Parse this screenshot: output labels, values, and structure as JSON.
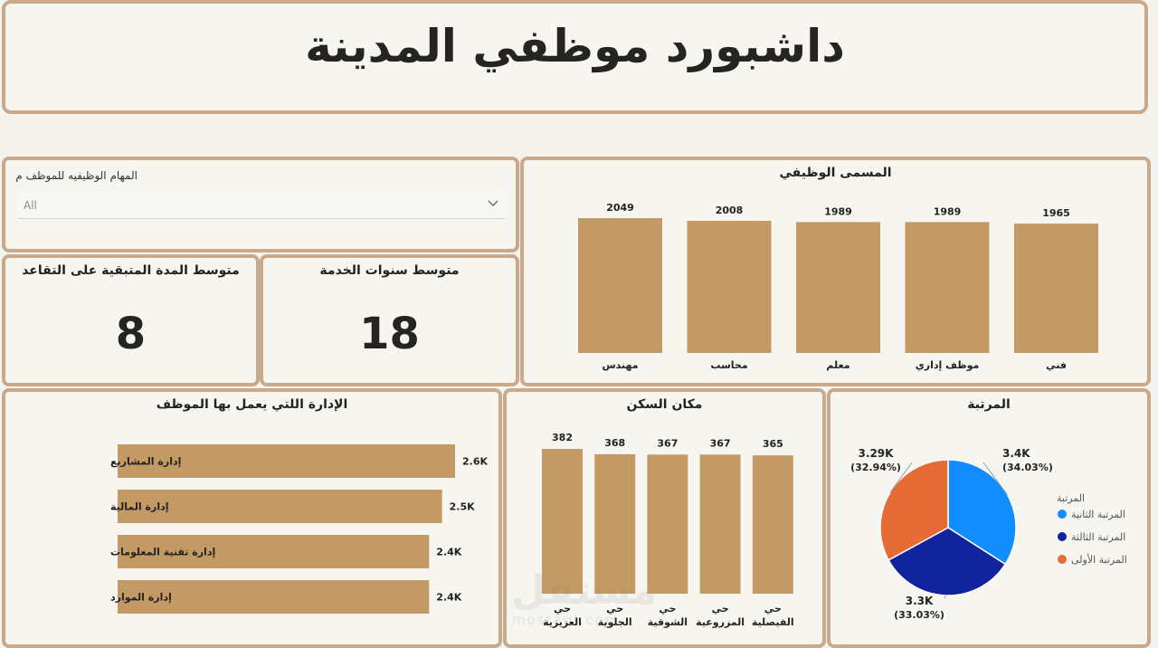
{
  "header": {
    "title": "داشبورد موظفي المدينة"
  },
  "slicer": {
    "label": "المهام الوظيفيه للموظف م",
    "value": "All"
  },
  "kpis": [
    {
      "title": "متوسط المدة المتبقية على التقاعد",
      "value": "8"
    },
    {
      "title": "متوسط سنوات الخدمة",
      "value": "18"
    }
  ],
  "colors": {
    "bar": "#c49a64",
    "border": "#c9a98b",
    "pie": [
      "#118dff",
      "#12239e",
      "#e66c37"
    ]
  },
  "chart_data": [
    {
      "id": "jobs",
      "type": "bar",
      "title": "المسمى الوظيفي",
      "categories": [
        "مهندس",
        "محاسب",
        "معلم",
        "موظف إداري",
        "فني"
      ],
      "values": [
        2049,
        2008,
        1989,
        1989,
        1965
      ],
      "data_labels": [
        "2049",
        "2008",
        "1989",
        "1989",
        "1965"
      ],
      "ylim": [
        0,
        2049
      ]
    },
    {
      "id": "dept",
      "type": "bar",
      "orientation": "horizontal",
      "title": "الإدارة اللتي يعمل بها الموظف",
      "categories": [
        "إدارة المشاريع",
        "إدارة المالية",
        "إدارة تقنية المعلومات",
        "إدارة الموارد"
      ],
      "values": [
        2600,
        2500,
        2400,
        2400
      ],
      "data_labels": [
        "2.6K",
        "2.5K",
        "2.4K",
        "2.4K"
      ]
    },
    {
      "id": "housing",
      "type": "bar",
      "title": "مكان السكن",
      "categories": [
        [
          "حي",
          "العزيزية"
        ],
        [
          "حي",
          "الجلوية"
        ],
        [
          "حي",
          "الشوقية"
        ],
        [
          "حي",
          "المزروعية"
        ],
        [
          "حي",
          "الفيصلية"
        ]
      ],
      "values": [
        382,
        368,
        367,
        367,
        365
      ],
      "data_labels": [
        "382",
        "368",
        "367",
        "367",
        "365"
      ]
    },
    {
      "id": "rank",
      "type": "pie",
      "title": "المرتبة",
      "legend_title": "المرتبة",
      "legend_position": "right",
      "slices": [
        {
          "name": "المرتبة الثانية",
          "value": 3400,
          "label": "3.4K",
          "pct": "(34.03%)"
        },
        {
          "name": "المرتبة الثالثة",
          "value": 3300,
          "label": "3.3K",
          "pct": "(33.03%)"
        },
        {
          "name": "المرتبة الأولى",
          "value": 3290,
          "label": "3.29K",
          "pct": "(32.94%)"
        }
      ]
    }
  ],
  "watermark": {
    "text": "مستقل",
    "sub": "mostaql.com"
  }
}
